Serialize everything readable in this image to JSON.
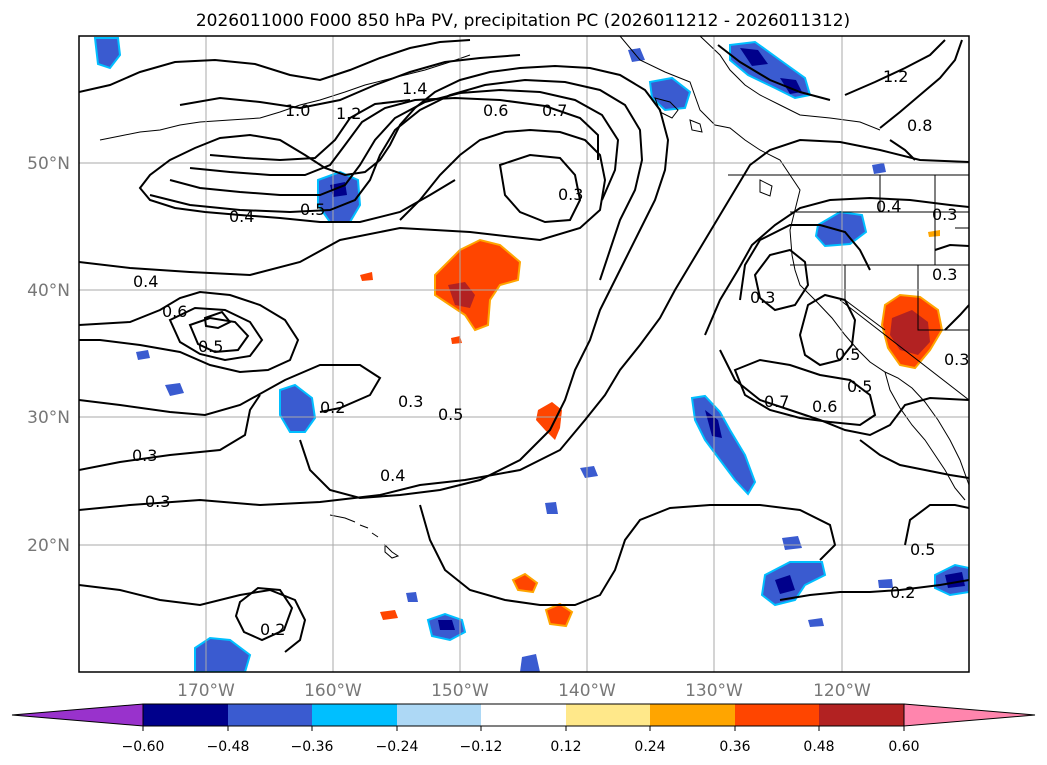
{
  "title": "2026011000 F000 850 hPa PV, precipitation PC (2026011212 - 2026011312)",
  "map": {
    "lat_labels": [
      "50°N",
      "40°N",
      "30°N",
      "20°N"
    ],
    "lon_labels": [
      "170°W",
      "160°W",
      "150°W",
      "140°W",
      "130°W",
      "120°W"
    ],
    "gridlines": true,
    "coastlines": true,
    "extent": {
      "lon_min": -180,
      "lon_max": -110,
      "lat_min": 10,
      "lat_max": 60
    }
  },
  "colorbar": {
    "ticks": [
      "−0.60",
      "−0.48",
      "−0.36",
      "−0.24",
      "−0.12",
      "0.12",
      "0.24",
      "0.36",
      "0.48",
      "0.60"
    ],
    "colors": [
      "#9932cc",
      "#00008b",
      "#3a5bd0",
      "#00bfff",
      "#add8f5",
      "#ffffff",
      "#ffe88a",
      "#ffa500",
      "#ff4500",
      "#b22222",
      "#ff85ad"
    ],
    "extend": "both"
  },
  "contour_labels": [
    "1.0",
    "1.2",
    "1.4",
    "0.6",
    "0.7",
    "1.2",
    "0.8",
    "0.5",
    "0.4",
    "0.3",
    "0.4",
    "0.4",
    "0.6",
    "0.5",
    "0.2",
    "0.3",
    "0.5",
    "0.3",
    "0.3",
    "0.4",
    "0.3",
    "0.2",
    "0.3",
    "0.7",
    "0.6",
    "0.5",
    "0.5",
    "0.3",
    "0.5",
    "0.2",
    "0.3"
  ],
  "colors": {
    "coast": "#000000",
    "grid": "#aaaaaa",
    "contour": "#000000"
  }
}
